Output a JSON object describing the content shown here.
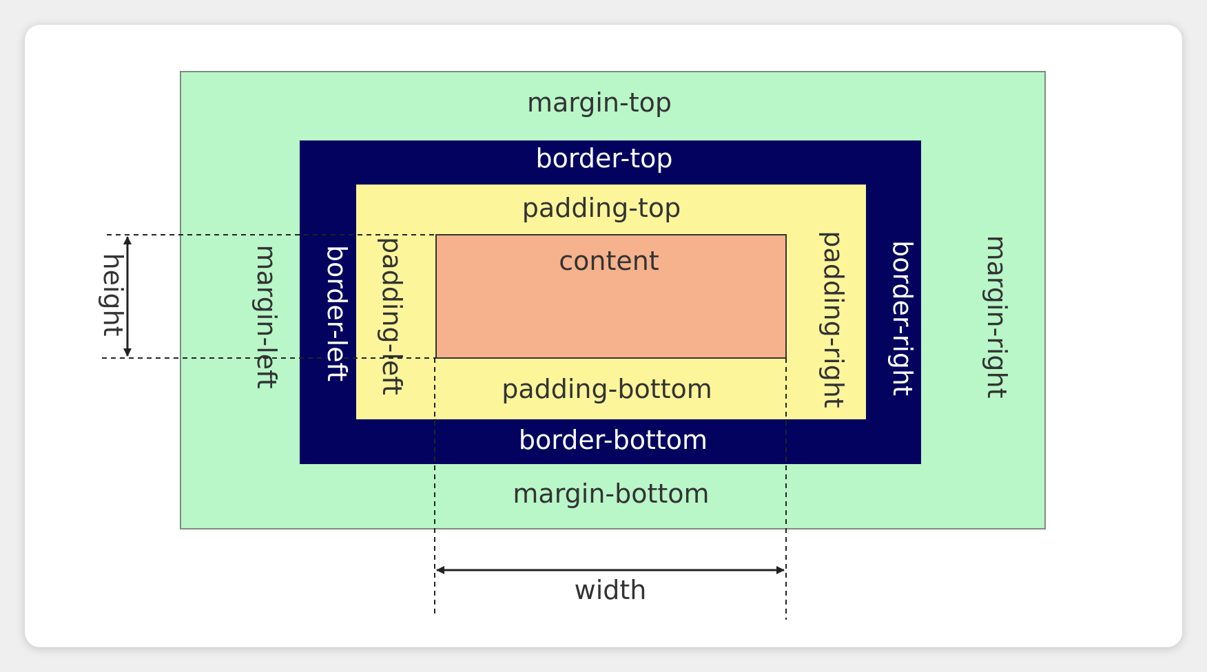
{
  "colors": {
    "margin": "#b9f6c8",
    "border": "#03035f",
    "padding": "#fcf59a",
    "content": "#f6b28c",
    "margin_text": "#333333",
    "border_text": "#ffffff",
    "padding_text": "#333333",
    "guide": "#222222"
  },
  "labels": {
    "margin_top": "margin-top",
    "margin_bottom": "margin-bottom",
    "margin_left": "margin-left",
    "margin_right": "margin-right",
    "border_top": "border-top",
    "border_bottom": "border-bottom",
    "border_left": "border-left",
    "border_right": "border-right",
    "padding_top": "padding-top",
    "padding_bottom": "padding-bottom",
    "padding_left": "padding-left",
    "padding_right": "padding-right",
    "content": "content",
    "height": "height",
    "width": "width"
  }
}
